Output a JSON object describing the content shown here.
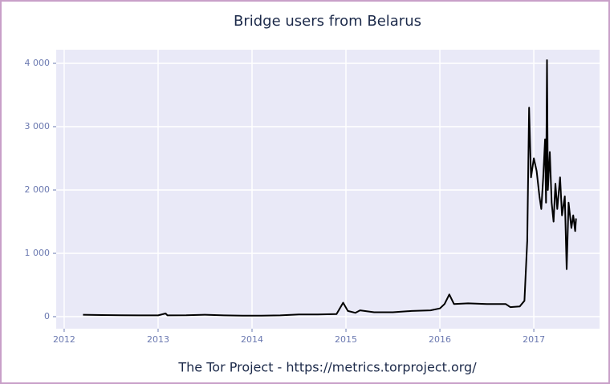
{
  "chart_data": {
    "type": "line",
    "title": "Bridge users from Belarus",
    "caption": "The Tor Project - https://metrics.torproject.org/",
    "x": [
      2012.2,
      2012.4,
      2012.6,
      2012.8,
      2013.0,
      2013.08,
      2013.1,
      2013.3,
      2013.5,
      2013.7,
      2013.9,
      2014.1,
      2014.3,
      2014.5,
      2014.7,
      2014.9,
      2014.97,
      2015.02,
      2015.1,
      2015.15,
      2015.3,
      2015.5,
      2015.7,
      2015.9,
      2016.0,
      2016.05,
      2016.1,
      2016.15,
      2016.3,
      2016.5,
      2016.7,
      2016.75,
      2016.85,
      2016.9,
      2016.93,
      2016.95,
      2016.97,
      2017.0,
      2017.03,
      2017.06,
      2017.08,
      2017.1,
      2017.12,
      2017.13,
      2017.14,
      2017.15,
      2017.17,
      2017.19,
      2017.21,
      2017.23,
      2017.25,
      2017.28,
      2017.3,
      2017.33,
      2017.35,
      2017.37,
      2017.4,
      2017.42,
      2017.44,
      2017.45
    ],
    "series": [
      {
        "color": "#000000",
        "values": [
          30,
          25,
          22,
          20,
          20,
          50,
          20,
          22,
          30,
          20,
          15,
          15,
          20,
          35,
          35,
          40,
          220,
          90,
          60,
          100,
          70,
          70,
          90,
          100,
          130,
          200,
          350,
          200,
          210,
          200,
          200,
          150,
          160,
          250,
          1200,
          3300,
          2200,
          2500,
          2300,
          1900,
          1700,
          2200,
          2800,
          1800,
          4050,
          2000,
          2600,
          1800,
          1500,
          2100,
          1700,
          2200,
          1600,
          1900,
          750,
          1800,
          1400,
          1600,
          1350,
          1550
        ]
      }
    ],
    "xlim": [
      2011.915,
      2017.7
    ],
    "xticks": [
      2012,
      2013,
      2014,
      2015,
      2016,
      2017
    ],
    "ylim": [
      -190,
      4215
    ],
    "yticks": [
      0,
      {
        "value": 1000,
        "label": "1 000"
      },
      {
        "value": 2000,
        "label": "2 000"
      },
      {
        "value": 3000,
        "label": "3 000"
      },
      {
        "value": 4000,
        "label": "4 000"
      }
    ],
    "grid": true
  }
}
